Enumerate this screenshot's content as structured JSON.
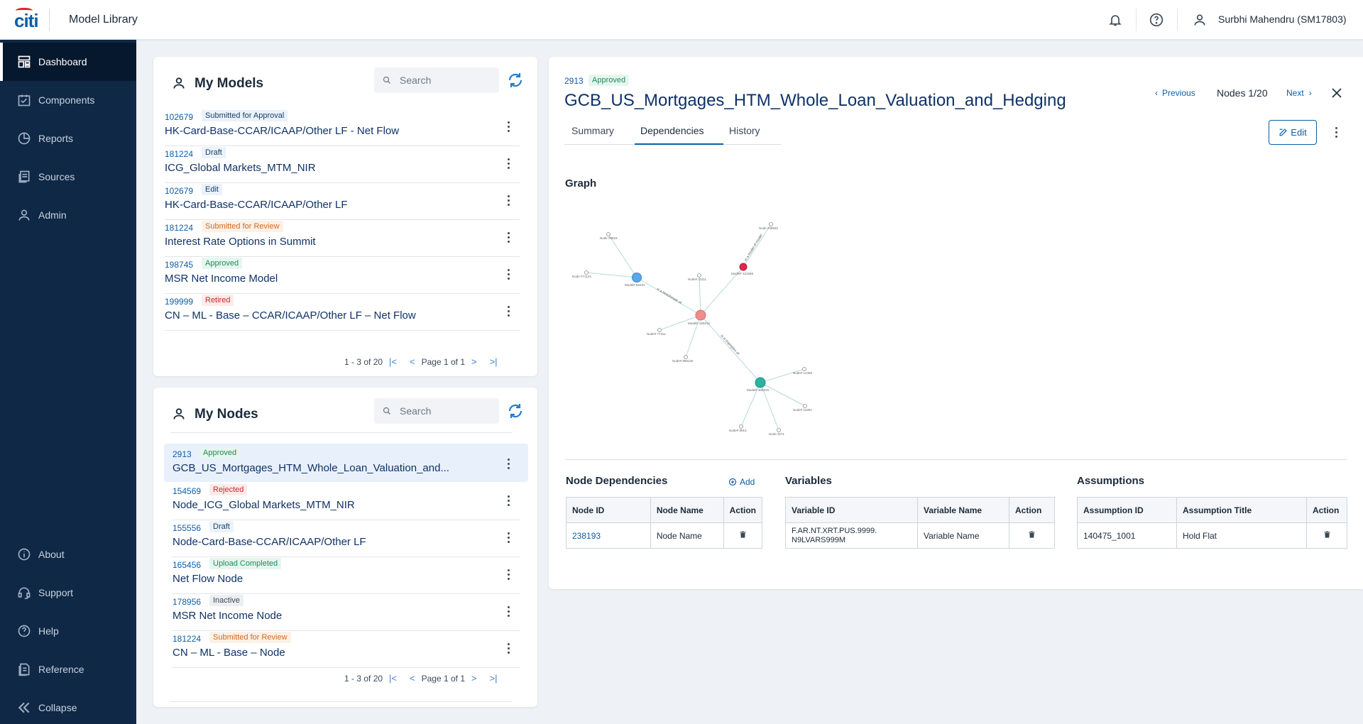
{
  "app": {
    "logo": "citi",
    "title": "Model Library"
  },
  "header": {
    "user_name": "Surbhi Mahendru (SM17803)"
  },
  "sidebar": {
    "items": [
      {
        "label": "Dashboard",
        "icon": "dashboard-icon"
      },
      {
        "label": "Components",
        "icon": "components-icon"
      },
      {
        "label": "Reports",
        "icon": "reports-icon"
      },
      {
        "label": "Sources",
        "icon": "sources-icon"
      },
      {
        "label": "Admin",
        "icon": "user-icon"
      }
    ],
    "bottom_items": [
      {
        "label": "About",
        "icon": "info-icon"
      },
      {
        "label": "Support",
        "icon": "headset-icon"
      },
      {
        "label": "Help",
        "icon": "help-icon"
      },
      {
        "label": "Reference",
        "icon": "reference-icon"
      },
      {
        "label": "Collapse",
        "icon": "collapse-icon"
      }
    ]
  },
  "my_models": {
    "title": "My Models",
    "search_placeholder": "Search",
    "items": [
      {
        "id": "102679",
        "status": "Submitted for Approval",
        "name": "HK-Card-Base-CCAR/ICAAP/Other LF - Net Flow"
      },
      {
        "id": "181224",
        "status": "Draft",
        "name": "ICG_Global Markets_MTM_NIR"
      },
      {
        "id": "102679",
        "status": "Edit",
        "name": "HK-Card-Base-CCAR/ICAAP/Other LF"
      },
      {
        "id": "181224",
        "status": "Submitted for Review",
        "name": "Interest Rate Options in Summit"
      },
      {
        "id": "198745",
        "status": "Approved",
        "name": "MSR Net Income Model"
      },
      {
        "id": "199999",
        "status": "Retired",
        "name": "CN – ML - Base – CCAR/ICAAP/Other LF – Net Flow"
      }
    ],
    "pager": {
      "range": "1 - 3 of 20",
      "page": "Page 1 of 1"
    }
  },
  "my_nodes": {
    "title": "My Nodes",
    "search_placeholder": "Search",
    "items": [
      {
        "id": "2913",
        "status": "Approved",
        "name": "GCB_US_Mortgages_HTM_Whole_Loan_Valuation_and..."
      },
      {
        "id": "154569",
        "status": "Rejected",
        "name": "Node_ICG_Global Markets_MTM_NIR"
      },
      {
        "id": "155556",
        "status": "Draft",
        "name": "Node-Card-Base-CCAR/ICAAP/Other LF"
      },
      {
        "id": "165456",
        "status": "Upload Completed",
        "name": "Net Flow Node"
      },
      {
        "id": "178956",
        "status": "Inactive",
        "name": "MSR Net Income Node"
      },
      {
        "id": "181224",
        "status": "Submitted for Review",
        "name": "CN – ML - Base – Node"
      }
    ],
    "pager": {
      "range": "1 - 3 of 20",
      "page": "Page 1 of 1"
    }
  },
  "detail": {
    "id": "2913",
    "status": "Approved",
    "title": "GCB_US_Mortgages_HTM_Whole_Loan_Valuation_and_Hedging",
    "previous": "Previous",
    "counter": "Nodes 1/20",
    "next": "Next",
    "tabs": [
      "Summary",
      "Dependencies",
      "History"
    ],
    "edit_label": "Edit",
    "graph_heading": "Graph",
    "graph": {
      "edge_labels": [
        "is a benchmark of",
        "is a champion of",
        "is a model of model"
      ],
      "node_labels": [
        "Node #9819",
        "Node #71124",
        "Model# 65431",
        "Node# 31111",
        "Model# 321669",
        "Node #48932",
        "Model# 328212",
        "Node# 77311",
        "Node# 89013e",
        "Model# 306219",
        "Node# 12456",
        "Node# 11991",
        "Node# 8913",
        "Node 3271"
      ]
    },
    "node_dependencies": {
      "heading": "Node Dependencies",
      "add_label": "Add",
      "columns": [
        "Node ID",
        "Node Name",
        "Action"
      ],
      "rows": [
        {
          "id": "238193",
          "name": "Node Name"
        }
      ]
    },
    "variables": {
      "heading": "Variables",
      "columns": [
        "Variable ID",
        "Variable Name",
        "Action"
      ],
      "rows": [
        {
          "id_line1": "F.AR.NT.XRT.PUS.9999.",
          "id_line2": "N9LVARS999M",
          "name": "Variable Name"
        }
      ]
    },
    "assumptions": {
      "heading": "Assumptions",
      "columns": [
        "Assumption ID",
        "Assumption Title",
        "Action"
      ],
      "rows": [
        {
          "id": "140475_1001",
          "title": "Hold Flat"
        }
      ]
    }
  },
  "colors": {
    "sidebar_bg": "#0f2846",
    "accent": "#0b5ea8",
    "title_text": "#0f3266"
  }
}
